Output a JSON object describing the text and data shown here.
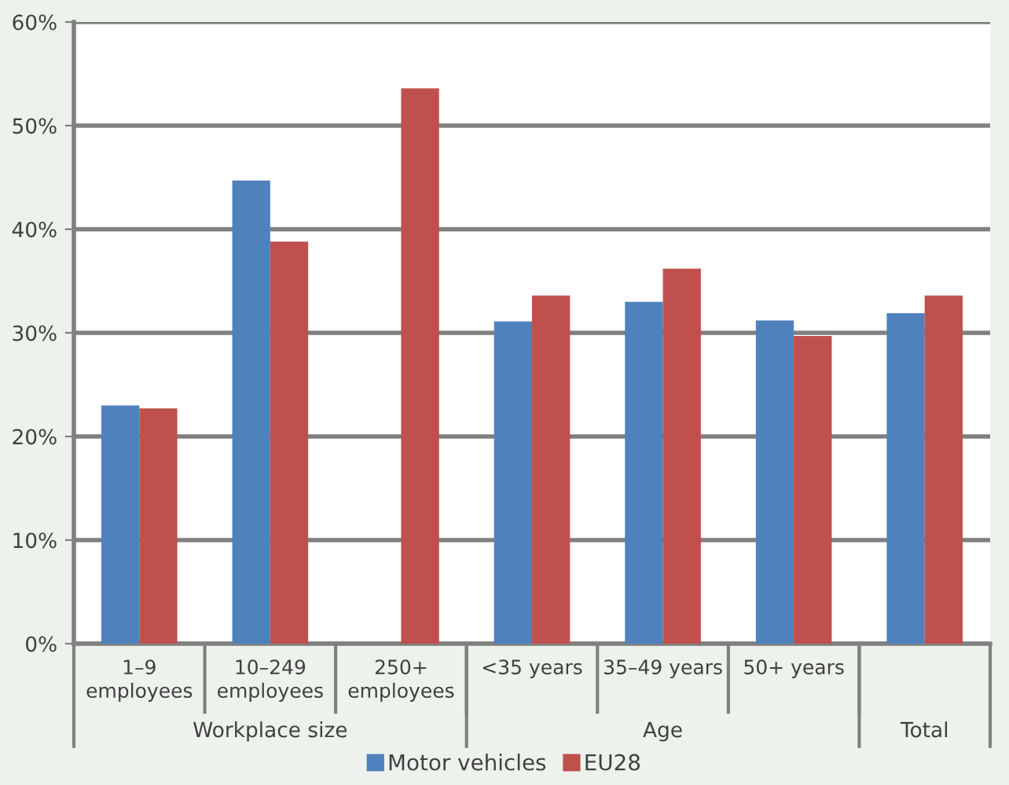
{
  "chart_data": {
    "type": "bar",
    "categories": [
      "1–9\nemployees",
      "10–249\nemployees",
      "250+\nemployees",
      "<35 years",
      "35–49 years",
      "50+ years",
      null
    ],
    "series": [
      {
        "name": "Motor vehicles",
        "color": "#4f81bd",
        "values": [
          23.0,
          44.7,
          null,
          31.1,
          33.0,
          31.2,
          31.9
        ]
      },
      {
        "name": "EU28",
        "color": "#c0504d",
        "values": [
          22.7,
          38.8,
          53.6,
          33.6,
          36.2,
          29.7,
          33.6
        ]
      }
    ],
    "ylim": [
      0,
      60
    ],
    "yticks": [
      {
        "value": 0,
        "label": "0%"
      },
      {
        "value": 10,
        "label": "10%"
      },
      {
        "value": 20,
        "label": "20%"
      },
      {
        "value": 30,
        "label": "30%"
      },
      {
        "value": 40,
        "label": "40%"
      },
      {
        "value": 50,
        "label": "50%"
      },
      {
        "value": 60,
        "label": "60%"
      }
    ],
    "annotations": [
      "Workplace size",
      "Age",
      "Total"
    ],
    "grid": "y",
    "legend": "bottom"
  }
}
